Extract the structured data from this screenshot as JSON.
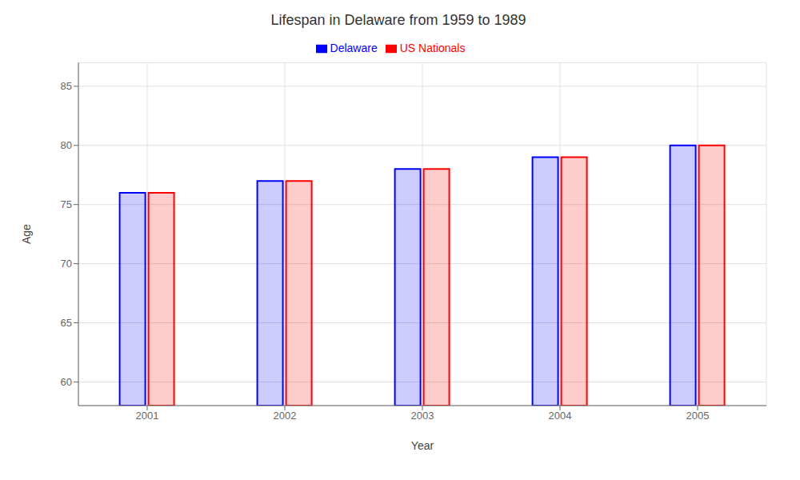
{
  "chart_data": {
    "type": "bar",
    "title": "Lifespan in Delaware from 1959 to 1989",
    "xlabel": "Year",
    "ylabel": "Age",
    "categories": [
      "2001",
      "2002",
      "2003",
      "2004",
      "2005"
    ],
    "series": [
      {
        "name": "Delaware",
        "color": "#0000ff",
        "values": [
          76,
          77,
          78,
          79,
          80
        ]
      },
      {
        "name": "US Nationals",
        "color": "#ff0000",
        "values": [
          76,
          77,
          78,
          79,
          80
        ]
      }
    ],
    "ylim": [
      58,
      87
    ],
    "yticks": [
      60,
      65,
      70,
      75,
      80,
      85
    ],
    "grid": true,
    "legend": "top"
  }
}
